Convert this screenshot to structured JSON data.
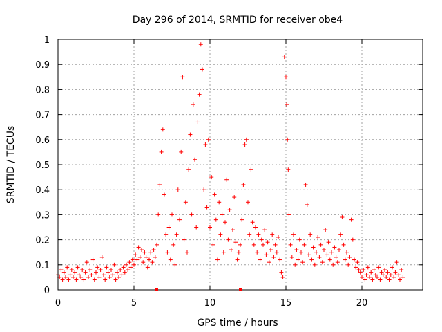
{
  "chart_data": {
    "type": "scatter",
    "title": "Day 296 of 2014, SRMTID for receiver obe4",
    "xlabel": "GPS time / hours",
    "ylabel": "SRMTID / TECUs",
    "xlim": [
      0,
      24
    ],
    "ylim": [
      0,
      1
    ],
    "xticks": [
      0,
      5,
      10,
      15,
      20
    ],
    "xtick_labels": [
      "0",
      "5",
      "10",
      "15",
      "20"
    ],
    "yticks": [
      0,
      0.1,
      0.2,
      0.3,
      0.4,
      0.5,
      0.6,
      0.7,
      0.8,
      0.9,
      1
    ],
    "ytick_labels": [
      "0",
      "0.1",
      "0.2",
      "0.3",
      "0.4",
      "0.5",
      "0.6",
      "0.7",
      "0.8",
      "0.9",
      "1"
    ],
    "grid": true,
    "marker": "+",
    "color": "#ff0000",
    "series": [
      {
        "name": "obe4",
        "points": [
          [
            0.0,
            0.06
          ],
          [
            0.1,
            0.05
          ],
          [
            0.2,
            0.08
          ],
          [
            0.3,
            0.04
          ],
          [
            0.4,
            0.07
          ],
          [
            0.5,
            0.05
          ],
          [
            0.6,
            0.09
          ],
          [
            0.7,
            0.04
          ],
          [
            0.8,
            0.06
          ],
          [
            0.9,
            0.08
          ],
          [
            1.0,
            0.05
          ],
          [
            1.1,
            0.07
          ],
          [
            1.2,
            0.04
          ],
          [
            1.3,
            0.09
          ],
          [
            1.4,
            0.06
          ],
          [
            1.5,
            0.05
          ],
          [
            1.6,
            0.08
          ],
          [
            1.7,
            0.04
          ],
          [
            1.8,
            0.07
          ],
          [
            1.9,
            0.11
          ],
          [
            2.0,
            0.05
          ],
          [
            2.1,
            0.08
          ],
          [
            2.2,
            0.06
          ],
          [
            2.3,
            0.12
          ],
          [
            2.4,
            0.04
          ],
          [
            2.5,
            0.07
          ],
          [
            2.6,
            0.09
          ],
          [
            2.7,
            0.05
          ],
          [
            2.8,
            0.08
          ],
          [
            2.9,
            0.13
          ],
          [
            3.0,
            0.06
          ],
          [
            3.1,
            0.04
          ],
          [
            3.2,
            0.09
          ],
          [
            3.3,
            0.07
          ],
          [
            3.4,
            0.05
          ],
          [
            3.5,
            0.08
          ],
          [
            3.6,
            0.06
          ],
          [
            3.7,
            0.1
          ],
          [
            3.8,
            0.04
          ],
          [
            3.9,
            0.07
          ],
          [
            4.0,
            0.05
          ],
          [
            4.1,
            0.08
          ],
          [
            4.2,
            0.06
          ],
          [
            4.3,
            0.09
          ],
          [
            4.4,
            0.07
          ],
          [
            4.5,
            0.1
          ],
          [
            4.6,
            0.08
          ],
          [
            4.7,
            0.11
          ],
          [
            4.8,
            0.09
          ],
          [
            4.9,
            0.12
          ],
          [
            5.0,
            0.1
          ],
          [
            5.1,
            0.14
          ],
          [
            5.2,
            0.12
          ],
          [
            5.3,
            0.17
          ],
          [
            5.4,
            0.13
          ],
          [
            5.5,
            0.16
          ],
          [
            5.6,
            0.11
          ],
          [
            5.7,
            0.15
          ],
          [
            5.8,
            0.13
          ],
          [
            5.9,
            0.09
          ],
          [
            6.0,
            0.12
          ],
          [
            6.1,
            0.15
          ],
          [
            6.2,
            0.11
          ],
          [
            6.3,
            0.16
          ],
          [
            6.4,
            0.13
          ],
          [
            6.5,
            0.18
          ],
          [
            6.6,
            0.3
          ],
          [
            6.7,
            0.42
          ],
          [
            6.8,
            0.55
          ],
          [
            6.9,
            0.64
          ],
          [
            7.0,
            0.38
          ],
          [
            7.1,
            0.22
          ],
          [
            7.2,
            0.15
          ],
          [
            7.3,
            0.25
          ],
          [
            7.4,
            0.12
          ],
          [
            7.5,
            0.3
          ],
          [
            7.6,
            0.18
          ],
          [
            7.7,
            0.1
          ],
          [
            7.8,
            0.22
          ],
          [
            7.9,
            0.4
          ],
          [
            8.0,
            0.28
          ],
          [
            8.1,
            0.55
          ],
          [
            8.2,
            0.85
          ],
          [
            8.3,
            0.2
          ],
          [
            8.4,
            0.35
          ],
          [
            8.5,
            0.15
          ],
          [
            8.6,
            0.48
          ],
          [
            8.7,
            0.62
          ],
          [
            8.8,
            0.3
          ],
          [
            8.9,
            0.74
          ],
          [
            9.0,
            0.52
          ],
          [
            9.1,
            0.25
          ],
          [
            9.2,
            0.67
          ],
          [
            9.3,
            0.78
          ],
          [
            9.4,
            0.98
          ],
          [
            9.5,
            0.88
          ],
          [
            9.6,
            0.4
          ],
          [
            9.7,
            0.58
          ],
          [
            9.8,
            0.33
          ],
          [
            9.9,
            0.6
          ],
          [
            10.0,
            0.25
          ],
          [
            10.1,
            0.45
          ],
          [
            10.2,
            0.18
          ],
          [
            10.3,
            0.38
          ],
          [
            10.4,
            0.28
          ],
          [
            10.5,
            0.12
          ],
          [
            10.6,
            0.35
          ],
          [
            10.7,
            0.22
          ],
          [
            10.8,
            0.3
          ],
          [
            10.9,
            0.15
          ],
          [
            11.0,
            0.27
          ],
          [
            11.1,
            0.44
          ],
          [
            11.2,
            0.2
          ],
          [
            11.3,
            0.32
          ],
          [
            11.4,
            0.16
          ],
          [
            11.5,
            0.24
          ],
          [
            11.6,
            0.37
          ],
          [
            11.7,
            0.19
          ],
          [
            11.8,
            0.12
          ],
          [
            11.9,
            0.15
          ],
          [
            12.0,
            0.18
          ],
          [
            12.1,
            0.28
          ],
          [
            12.2,
            0.42
          ],
          [
            12.3,
            0.58
          ],
          [
            12.4,
            0.6
          ],
          [
            12.5,
            0.35
          ],
          [
            12.6,
            0.22
          ],
          [
            12.7,
            0.48
          ],
          [
            12.8,
            0.27
          ],
          [
            12.9,
            0.18
          ],
          [
            13.0,
            0.25
          ],
          [
            13.1,
            0.15
          ],
          [
            13.2,
            0.22
          ],
          [
            13.3,
            0.12
          ],
          [
            13.4,
            0.2
          ],
          [
            13.5,
            0.18
          ],
          [
            13.6,
            0.24
          ],
          [
            13.7,
            0.14
          ],
          [
            13.8,
            0.19
          ],
          [
            13.9,
            0.11
          ],
          [
            14.0,
            0.16
          ],
          [
            14.1,
            0.22
          ],
          [
            14.2,
            0.13
          ],
          [
            14.3,
            0.18
          ],
          [
            14.4,
            0.15
          ],
          [
            14.5,
            0.21
          ],
          [
            14.6,
            0.12
          ],
          [
            14.7,
            0.07
          ],
          [
            14.8,
            0.05
          ],
          [
            14.9,
            0.93
          ],
          [
            15.0,
            0.85
          ],
          [
            15.05,
            0.74
          ],
          [
            15.1,
            0.6
          ],
          [
            15.15,
            0.48
          ],
          [
            15.2,
            0.3
          ],
          [
            15.3,
            0.18
          ],
          [
            15.4,
            0.13
          ],
          [
            15.5,
            0.22
          ],
          [
            15.6,
            0.1
          ],
          [
            15.7,
            0.16
          ],
          [
            15.8,
            0.12
          ],
          [
            15.9,
            0.2
          ],
          [
            16.0,
            0.15
          ],
          [
            16.1,
            0.11
          ],
          [
            16.2,
            0.18
          ],
          [
            16.3,
            0.42
          ],
          [
            16.4,
            0.34
          ],
          [
            16.5,
            0.14
          ],
          [
            16.6,
            0.22
          ],
          [
            16.7,
            0.12
          ],
          [
            16.8,
            0.17
          ],
          [
            16.9,
            0.1
          ],
          [
            17.0,
            0.15
          ],
          [
            17.1,
            0.21
          ],
          [
            17.2,
            0.13
          ],
          [
            17.3,
            0.18
          ],
          [
            17.4,
            0.11
          ],
          [
            17.5,
            0.16
          ],
          [
            17.6,
            0.24
          ],
          [
            17.7,
            0.14
          ],
          [
            17.8,
            0.19
          ],
          [
            17.9,
            0.12
          ],
          [
            18.0,
            0.15
          ],
          [
            18.1,
            0.1
          ],
          [
            18.2,
            0.17
          ],
          [
            18.3,
            0.13
          ],
          [
            18.4,
            0.11
          ],
          [
            18.5,
            0.16
          ],
          [
            18.6,
            0.22
          ],
          [
            18.7,
            0.29
          ],
          [
            18.8,
            0.18
          ],
          [
            18.9,
            0.12
          ],
          [
            19.0,
            0.15
          ],
          [
            19.1,
            0.1
          ],
          [
            19.2,
            0.13
          ],
          [
            19.3,
            0.28
          ],
          [
            19.4,
            0.2
          ],
          [
            19.5,
            0.12
          ],
          [
            19.6,
            0.09
          ],
          [
            19.7,
            0.11
          ],
          [
            19.8,
            0.08
          ],
          [
            19.9,
            0.07
          ],
          [
            20.0,
            0.05
          ],
          [
            20.1,
            0.08
          ],
          [
            20.2,
            0.04
          ],
          [
            20.3,
            0.06
          ],
          [
            20.4,
            0.09
          ],
          [
            20.5,
            0.05
          ],
          [
            20.6,
            0.07
          ],
          [
            20.7,
            0.04
          ],
          [
            20.8,
            0.08
          ],
          [
            20.9,
            0.06
          ],
          [
            21.0,
            0.05
          ],
          [
            21.1,
            0.09
          ],
          [
            21.2,
            0.04
          ],
          [
            21.3,
            0.07
          ],
          [
            21.4,
            0.06
          ],
          [
            21.5,
            0.08
          ],
          [
            21.6,
            0.05
          ],
          [
            21.7,
            0.07
          ],
          [
            21.8,
            0.04
          ],
          [
            21.9,
            0.06
          ],
          [
            22.0,
            0.09
          ],
          [
            22.1,
            0.05
          ],
          [
            22.2,
            0.07
          ],
          [
            22.3,
            0.11
          ],
          [
            22.4,
            0.06
          ],
          [
            22.5,
            0.04
          ],
          [
            22.6,
            0.08
          ],
          [
            22.7,
            0.05
          ]
        ]
      }
    ],
    "axis_markers": [
      6.5,
      12.0
    ]
  }
}
